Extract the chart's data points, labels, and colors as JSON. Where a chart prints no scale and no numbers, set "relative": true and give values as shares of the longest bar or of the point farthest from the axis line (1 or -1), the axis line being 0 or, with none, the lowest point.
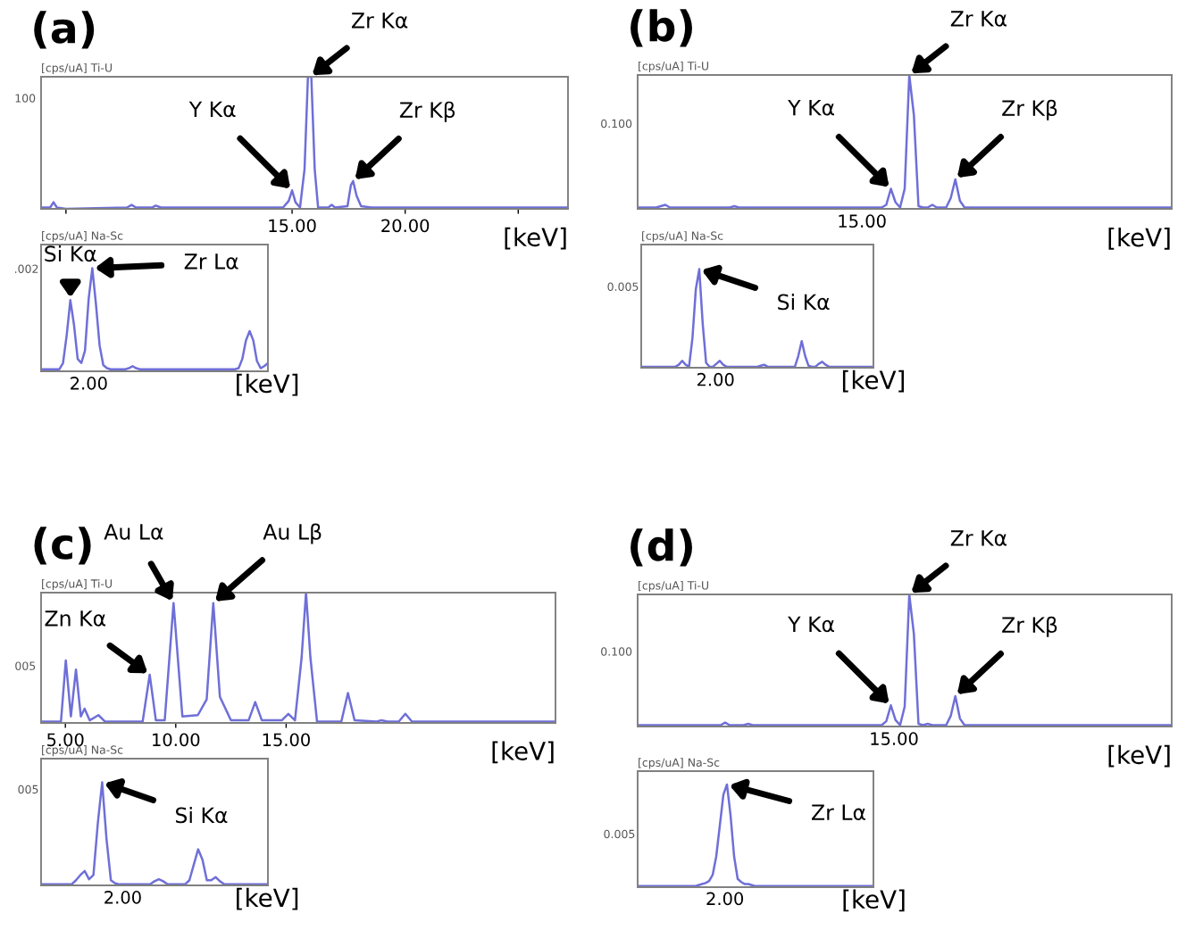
{
  "chart_data": [
    {
      "type": "line",
      "title": "(a)",
      "ylabel": "[cps/uA] Ti-U",
      "xlabel": "[keV]",
      "relative": true,
      "xlim": [
        3.9,
        27.2
      ],
      "xticks": [
        {
          "value": 5,
          "label": null
        },
        {
          "value": 15,
          "label": "15.00"
        },
        {
          "value": 20,
          "label": "20.00"
        },
        {
          "value": 25,
          "label": null
        }
      ],
      "color": "#6f6fd8",
      "x": [
        3.9,
        4.3,
        4.45,
        4.6,
        5.0,
        7.7,
        7.9,
        8.1,
        8.8,
        8.97,
        9.2,
        14.6,
        14.85,
        15.0,
        15.15,
        15.35,
        15.55,
        15.7,
        15.85,
        16.0,
        16.15,
        16.6,
        16.75,
        16.9,
        17.45,
        17.6,
        17.7,
        17.85,
        18.05,
        18.5,
        27.2
      ],
      "values": [
        0.01,
        0.01,
        0.05,
        0.01,
        0.0,
        0.01,
        0.03,
        0.01,
        0.01,
        0.025,
        0.01,
        0.01,
        0.06,
        0.14,
        0.05,
        0.01,
        0.3,
        1.0,
        1.0,
        0.3,
        0.01,
        0.01,
        0.03,
        0.01,
        0.02,
        0.18,
        0.21,
        0.1,
        0.02,
        0.01,
        0.01
      ],
      "annotations": [
        "100",
        {
          "text": "Y Kα",
          "x": 15.0,
          "y": 0.14
        },
        {
          "text": "Zr Kα",
          "x": 15.8,
          "y": 1.0
        },
        {
          "text": "Zr Kβ",
          "x": 17.7,
          "y": 0.21
        }
      ]
    },
    {
      "type": "line",
      "ylabel": "[cps/uA] Na-Sc",
      "xlabel": "[keV]",
      "relative": true,
      "color": "#6f6fd8",
      "categories": [
        null,
        null,
        null,
        null,
        null,
        null,
        null,
        null,
        null,
        null,
        null,
        null,
        null,
        null,
        null,
        null,
        null,
        null,
        null,
        null,
        null,
        null,
        null,
        null,
        null,
        null,
        null,
        null,
        null,
        null,
        null,
        null,
        null,
        null,
        null,
        null,
        null,
        null,
        null,
        null,
        null,
        null,
        null,
        null,
        null,
        null,
        null,
        null,
        null,
        null,
        null,
        null,
        null,
        null,
        null,
        null,
        null,
        null,
        null,
        null,
        null,
        null,
        null
      ],
      "values": [
        0.02,
        0.02,
        0.02,
        0.02,
        0.02,
        0.02,
        0.08,
        0.35,
        0.69,
        0.45,
        0.12,
        0.08,
        0.2,
        0.7,
        1.0,
        0.65,
        0.25,
        0.06,
        0.03,
        0.02,
        0.02,
        0.02,
        0.02,
        0.02,
        0.03,
        0.05,
        0.03,
        0.02,
        0.02,
        0.02,
        0.02,
        0.02,
        0.02,
        0.02,
        0.02,
        0.02,
        0.02,
        0.02,
        0.02,
        0.02,
        0.02,
        0.02,
        0.02,
        0.02,
        0.02,
        0.02,
        0.02,
        0.02,
        0.02,
        0.02,
        0.02,
        0.02,
        0.02,
        0.02,
        0.03,
        0.12,
        0.3,
        0.39,
        0.3,
        0.1,
        0.03,
        0.05,
        0.08
      ],
      "annotations": [
        ".002",
        "2.00",
        "Si Kα",
        "Zr Lα"
      ]
    },
    {
      "type": "line",
      "title": "(b)",
      "ylabel": "[cps/uA] Ti-U",
      "xlabel": "[keV]",
      "relative": true,
      "color": "#6f6fd8",
      "categories": [
        null,
        null,
        null,
        null,
        null,
        null,
        null,
        null,
        null,
        null,
        null,
        null,
        null,
        null,
        null,
        null,
        null,
        null,
        null,
        null,
        null,
        null,
        null,
        null,
        null,
        null,
        null,
        null,
        null,
        null,
        null,
        null,
        null,
        null,
        null,
        null,
        null,
        null,
        null,
        null,
        null,
        null,
        null,
        null,
        null,
        null,
        null,
        null,
        null,
        null,
        null,
        null,
        null,
        null,
        null,
        null,
        null,
        null,
        null,
        null,
        null,
        null,
        null,
        null,
        null,
        null,
        null,
        null,
        null,
        null,
        null,
        null,
        null,
        null,
        null,
        null,
        null,
        null,
        null,
        null,
        null,
        null,
        null,
        null,
        null,
        null,
        null,
        null,
        null,
        null,
        null,
        null,
        null,
        null,
        null,
        null,
        null,
        null,
        null,
        null,
        null,
        null,
        null,
        null,
        null,
        null,
        null,
        null,
        null,
        null,
        null,
        null,
        null,
        null,
        null,
        null,
        null
      ],
      "values": [
        0.01,
        0.01,
        0.01,
        0.01,
        0.01,
        0.02,
        0.03,
        0.01,
        0.01,
        0.01,
        0.01,
        0.01,
        0.01,
        0.01,
        0.01,
        0.01,
        0.01,
        0.01,
        0.01,
        0.01,
        0.01,
        0.02,
        0.01,
        0.01,
        0.01,
        0.01,
        0.01,
        0.01,
        0.01,
        0.01,
        0.01,
        0.01,
        0.01,
        0.01,
        0.01,
        0.01,
        0.01,
        0.01,
        0.01,
        0.01,
        0.01,
        0.01,
        0.01,
        0.01,
        0.01,
        0.01,
        0.01,
        0.01,
        0.01,
        0.01,
        0.01,
        0.01,
        0.01,
        0.01,
        0.03,
        0.15,
        0.05,
        0.01,
        0.15,
        1.0,
        0.7,
        0.02,
        0.01,
        0.01,
        0.03,
        0.01,
        0.01,
        0.01,
        0.08,
        0.22,
        0.06,
        0.01,
        0.01,
        0.01,
        0.01,
        0.01,
        0.01,
        0.01,
        0.01,
        0.01,
        0.01,
        0.01,
        0.01,
        0.01,
        0.01,
        0.01,
        0.01,
        0.01,
        0.01,
        0.01,
        0.01,
        0.01,
        0.01,
        0.01,
        0.01,
        0.01,
        0.01,
        0.01,
        0.01,
        0.01,
        0.01,
        0.01,
        0.01,
        0.01,
        0.01,
        0.01,
        0.01,
        0.01,
        0.01,
        0.01,
        0.01,
        0.01,
        0.01,
        0.01,
        0.01,
        0.01,
        0.01
      ],
      "annotations": [
        "0.100",
        "15.00",
        "Y Kα",
        "Zr Kα",
        "Zr Kβ"
      ]
    },
    {
      "type": "line",
      "ylabel": "[cps/uA] Na-Sc",
      "xlabel": "[keV]",
      "relative": true,
      "color": "#6f6fd8",
      "categories": [
        null,
        null,
        null,
        null,
        null,
        null,
        null,
        null,
        null,
        null,
        null,
        null,
        null,
        null,
        null,
        null,
        null,
        null,
        null,
        null,
        null,
        null,
        null,
        null,
        null,
        null,
        null,
        null,
        null,
        null,
        null,
        null,
        null,
        null,
        null,
        null,
        null,
        null,
        null,
        null,
        null,
        null,
        null,
        null,
        null,
        null,
        null,
        null,
        null,
        null,
        null,
        null,
        null,
        null,
        null,
        null,
        null,
        null,
        null,
        null,
        null,
        null,
        null,
        null,
        null,
        null,
        null,
        null,
        null
      ],
      "values": [
        0.01,
        0.01,
        0.01,
        0.01,
        0.01,
        0.01,
        0.01,
        0.01,
        0.01,
        0.01,
        0.01,
        0.03,
        0.07,
        0.03,
        0.01,
        0.3,
        0.8,
        1.0,
        0.45,
        0.05,
        0.01,
        0.01,
        0.04,
        0.07,
        0.03,
        0.01,
        0.01,
        0.01,
        0.01,
        0.01,
        0.01,
        0.01,
        0.01,
        0.01,
        0.01,
        0.02,
        0.03,
        0.01,
        0.01,
        0.01,
        0.01,
        0.01,
        0.01,
        0.01,
        0.01,
        0.01,
        0.12,
        0.27,
        0.12,
        0.02,
        0.01,
        0.01,
        0.04,
        0.06,
        0.03,
        0.01,
        0.01,
        0.01,
        0.01,
        0.01,
        0.01,
        0.01,
        0.01,
        0.01,
        0.01,
        0.01,
        0.01,
        0.01,
        0.01
      ],
      "annotations": [
        "0.005",
        "2.00",
        "Si Kα"
      ]
    },
    {
      "type": "line",
      "title": "(c)",
      "ylabel": "[cps/uA] Ti-U",
      "xlabel": "[keV]",
      "relative": true,
      "xlim": [
        3.9,
        27.2
      ],
      "xticks": [
        {
          "value": 5,
          "label": "5.00"
        },
        {
          "value": 10,
          "label": "10.00"
        },
        {
          "value": 15,
          "label": "15.00"
        }
      ],
      "color": "#6f6fd8",
      "x": [
        3.9,
        4.8,
        5.02,
        5.25,
        5.48,
        5.7,
        5.87,
        6.1,
        6.5,
        6.8,
        8.5,
        8.82,
        9.1,
        9.5,
        9.9,
        10.3,
        11.0,
        11.4,
        11.7,
        12.0,
        12.5,
        13.3,
        13.6,
        13.9,
        14.8,
        15.1,
        15.4,
        15.7,
        15.9,
        16.1,
        16.4,
        17.5,
        17.8,
        18.1,
        19.1,
        19.3,
        19.6,
        20.1,
        20.4,
        20.7,
        27.2
      ],
      "values": [
        0.01,
        0.01,
        0.48,
        0.05,
        0.41,
        0.05,
        0.11,
        0.02,
        0.06,
        0.01,
        0.01,
        0.37,
        0.02,
        0.02,
        0.92,
        0.05,
        0.06,
        0.18,
        0.92,
        0.2,
        0.02,
        0.02,
        0.16,
        0.02,
        0.02,
        0.07,
        0.02,
        0.5,
        1.0,
        0.5,
        0.01,
        0.01,
        0.23,
        0.02,
        0.01,
        0.02,
        0.01,
        0.01,
        0.07,
        0.01,
        0.01
      ],
      "annotations": [
        "005",
        {
          "text": "Zn Kα",
          "x": 8.82,
          "y": 0.37
        },
        {
          "text": "Au Lα",
          "x": 9.9,
          "y": 0.92
        },
        {
          "text": "Au Lβ",
          "x": 11.7,
          "y": 0.92
        }
      ]
    },
    {
      "type": "line",
      "ylabel": "[cps/uA] Na-Sc",
      "xlabel": "[keV]",
      "relative": true,
      "color": "#6f6fd8",
      "categories": [
        null,
        null,
        null,
        null,
        null,
        null,
        null,
        null,
        null,
        null,
        null,
        null,
        null,
        null,
        null,
        null,
        null,
        null,
        null,
        null,
        null,
        null,
        null,
        null,
        null,
        null,
        null,
        null,
        null,
        null,
        null,
        null,
        null,
        null,
        null,
        null,
        null,
        null,
        null,
        null,
        null,
        null,
        null,
        null,
        null,
        null,
        null,
        null,
        null,
        null,
        null,
        null,
        null
      ],
      "values": [
        0.01,
        0.01,
        0.01,
        0.01,
        0.01,
        0.01,
        0.01,
        0.01,
        0.05,
        0.1,
        0.14,
        0.06,
        0.1,
        0.6,
        1.0,
        0.45,
        0.05,
        0.02,
        0.01,
        0.01,
        0.01,
        0.01,
        0.01,
        0.01,
        0.01,
        0.01,
        0.04,
        0.06,
        0.04,
        0.01,
        0.01,
        0.01,
        0.01,
        0.01,
        0.05,
        0.2,
        0.35,
        0.25,
        0.05,
        0.05,
        0.08,
        0.04,
        0.01,
        0.01,
        0.01,
        0.01,
        0.01,
        0.01,
        0.01,
        0.01,
        0.01,
        0.01,
        0.01
      ],
      "annotations": [
        "005",
        "2.00",
        "Si Kα"
      ]
    },
    {
      "type": "line",
      "title": "(d)",
      "ylabel": "[cps/uA] Ti-U",
      "xlabel": "[keV]",
      "relative": true,
      "color": "#6f6fd8",
      "categories": [
        null,
        null,
        null,
        null,
        null,
        null,
        null,
        null,
        null,
        null,
        null,
        null,
        null,
        null,
        null,
        null,
        null,
        null,
        null,
        null,
        null,
        null,
        null,
        null,
        null,
        null,
        null,
        null,
        null,
        null,
        null,
        null,
        null,
        null,
        null,
        null,
        null,
        null,
        null,
        null,
        null,
        null,
        null,
        null,
        null,
        null,
        null,
        null,
        null,
        null,
        null,
        null,
        null,
        null,
        null,
        null,
        null,
        null,
        null,
        null,
        null,
        null,
        null,
        null,
        null,
        null,
        null,
        null,
        null,
        null,
        null,
        null,
        null,
        null,
        null,
        null,
        null,
        null,
        null,
        null,
        null,
        null,
        null,
        null,
        null,
        null,
        null,
        null,
        null,
        null,
        null,
        null,
        null,
        null,
        null,
        null,
        null,
        null,
        null,
        null,
        null,
        null,
        null,
        null,
        null,
        null,
        null,
        null,
        null,
        null,
        null,
        null,
        null,
        null,
        null,
        null,
        null
      ],
      "values": [
        0.01,
        0.01,
        0.01,
        0.01,
        0.01,
        0.01,
        0.01,
        0.01,
        0.01,
        0.01,
        0.01,
        0.01,
        0.01,
        0.01,
        0.01,
        0.01,
        0.01,
        0.01,
        0.01,
        0.03,
        0.01,
        0.01,
        0.01,
        0.01,
        0.02,
        0.01,
        0.01,
        0.01,
        0.01,
        0.01,
        0.01,
        0.01,
        0.01,
        0.01,
        0.01,
        0.01,
        0.01,
        0.01,
        0.01,
        0.01,
        0.01,
        0.01,
        0.01,
        0.01,
        0.01,
        0.01,
        0.01,
        0.01,
        0.01,
        0.01,
        0.01,
        0.01,
        0.01,
        0.01,
        0.04,
        0.16,
        0.05,
        0.01,
        0.15,
        1.0,
        0.7,
        0.02,
        0.01,
        0.02,
        0.01,
        0.01,
        0.01,
        0.01,
        0.08,
        0.23,
        0.06,
        0.01,
        0.01,
        0.01,
        0.01,
        0.01,
        0.01,
        0.01,
        0.01,
        0.01,
        0.01,
        0.01,
        0.01,
        0.01,
        0.01,
        0.01,
        0.01,
        0.01,
        0.01,
        0.01,
        0.01,
        0.01,
        0.01,
        0.01,
        0.01,
        0.01,
        0.01,
        0.01,
        0.01,
        0.01,
        0.01,
        0.01,
        0.01,
        0.01,
        0.01,
        0.01,
        0.01,
        0.01,
        0.01,
        0.01,
        0.01,
        0.01,
        0.01,
        0.01,
        0.01,
        0.01,
        0.01
      ],
      "annotations": [
        "0.100",
        "15.00",
        "Y Kα",
        "Zr Kα",
        "Zr Kβ"
      ]
    },
    {
      "type": "line",
      "ylabel": "[cps/uA] Na-Sc",
      "xlabel": "[keV]",
      "relative": true,
      "color": "#6f6fd8",
      "categories": [
        null,
        null,
        null,
        null,
        null,
        null,
        null,
        null,
        null,
        null,
        null,
        null,
        null,
        null,
        null,
        null,
        null,
        null,
        null,
        null,
        null,
        null,
        null,
        null,
        null,
        null,
        null,
        null,
        null,
        null,
        null,
        null,
        null,
        null,
        null,
        null,
        null,
        null,
        null,
        null,
        null,
        null,
        null,
        null,
        null,
        null,
        null,
        null,
        null,
        null,
        null,
        null,
        null,
        null,
        null,
        null,
        null,
        null,
        null,
        null,
        null,
        null,
        null,
        null,
        null,
        null,
        null
      ],
      "values": [
        0.01,
        0.01,
        0.01,
        0.01,
        0.01,
        0.01,
        0.01,
        0.01,
        0.01,
        0.01,
        0.01,
        0.01,
        0.01,
        0.01,
        0.01,
        0.01,
        0.01,
        0.02,
        0.03,
        0.04,
        0.06,
        0.12,
        0.3,
        0.6,
        0.9,
        1.0,
        0.7,
        0.3,
        0.08,
        0.05,
        0.03,
        0.03,
        0.02,
        0.01,
        0.01,
        0.01,
        0.01,
        0.01,
        0.01,
        0.01,
        0.01,
        0.01,
        0.01,
        0.01,
        0.01,
        0.01,
        0.01,
        0.01,
        0.01,
        0.01,
        0.01,
        0.01,
        0.01,
        0.01,
        0.01,
        0.01,
        0.01,
        0.01,
        0.01,
        0.01,
        0.01,
        0.01,
        0.01,
        0.01,
        0.01,
        0.01,
        0.01
      ],
      "annotations": [
        "0.005",
        "2.00",
        "Zr Lα"
      ]
    }
  ]
}
